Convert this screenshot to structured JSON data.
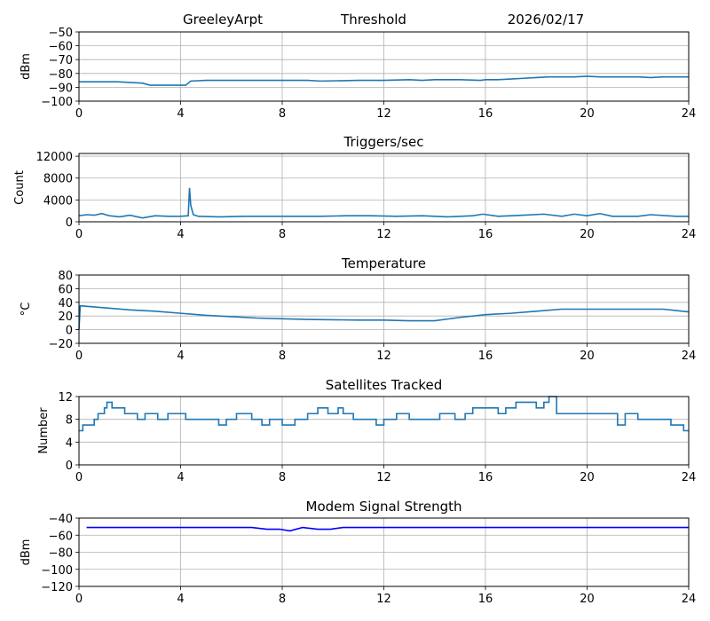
{
  "header": {
    "station": "GreeleyArpt",
    "mode": "Threshold",
    "date": "2026/02/17"
  },
  "chart_data": [
    {
      "type": "line",
      "title": "",
      "ylabel": "dBm",
      "xlim": [
        0,
        24
      ],
      "ylim": [
        -100,
        -50
      ],
      "xticks": [
        "0",
        "4",
        "8",
        "12",
        "16",
        "20",
        "24"
      ],
      "yticks": [
        "-50",
        "-60",
        "-70",
        "-80",
        "-90",
        "-100"
      ],
      "grid": true,
      "color": "#1f77b4",
      "x": [
        0,
        0.3,
        0.6,
        1.0,
        1.5,
        2.0,
        2.5,
        2.8,
        3.5,
        4.2,
        4.4,
        5.0,
        6.0,
        8.0,
        9.0,
        9.5,
        11.0,
        12.0,
        13.0,
        13.5,
        14.0,
        15.0,
        15.8,
        16.0,
        16.5,
        17.0,
        17.5,
        18.0,
        18.5,
        19.5,
        20.0,
        20.5,
        21.0,
        22.0,
        22.5,
        23.0,
        24.0
      ],
      "y": [
        -86,
        -86,
        -86,
        -86,
        -86,
        -86.5,
        -87,
        -88.5,
        -88.5,
        -88.5,
        -85.5,
        -85,
        -85,
        -85,
        -85,
        -85.5,
        -85,
        -85,
        -84.5,
        -85,
        -84.5,
        -84.5,
        -85,
        -84.5,
        -84.5,
        -84,
        -83.5,
        -83,
        -82.5,
        -82.5,
        -82,
        -82.5,
        -82.5,
        -82.5,
        -83,
        -82.5,
        -82.5
      ]
    },
    {
      "type": "line",
      "title": "Triggers/sec",
      "ylabel": "Count",
      "xlim": [
        0,
        24
      ],
      "ylim": [
        0,
        12500
      ],
      "xticks": [
        "0",
        "4",
        "8",
        "12",
        "16",
        "20",
        "24"
      ],
      "yticks": [
        "0",
        "4000",
        "8000",
        "12000"
      ],
      "grid": true,
      "color": "#1f77b4",
      "x": [
        0,
        0.3,
        0.6,
        0.9,
        1.2,
        1.6,
        2.0,
        2.5,
        3.0,
        3.5,
        4.0,
        4.3,
        4.35,
        4.4,
        4.5,
        4.7,
        5.5,
        6.5,
        7.5,
        8.5,
        9.5,
        10.5,
        11.5,
        12.5,
        13.5,
        14.5,
        15.5,
        15.9,
        16.5,
        17.5,
        18.3,
        19.0,
        19.5,
        20.0,
        20.5,
        21.0,
        22.0,
        22.5,
        23.5,
        24.0
      ],
      "y": [
        1100,
        1300,
        1200,
        1500,
        1100,
        900,
        1200,
        700,
        1100,
        1000,
        1000,
        1100,
        6200,
        3000,
        1300,
        1000,
        900,
        1000,
        1000,
        1000,
        1000,
        1100,
        1100,
        1000,
        1100,
        900,
        1100,
        1400,
        1000,
        1200,
        1400,
        1000,
        1400,
        1100,
        1500,
        1000,
        1000,
        1300,
        1000,
        1000
      ]
    },
    {
      "type": "line",
      "title": "Temperature",
      "ylabel": "°C",
      "xlim": [
        0,
        24
      ],
      "ylim": [
        -20,
        80
      ],
      "xticks": [
        "0",
        "4",
        "8",
        "12",
        "16",
        "20",
        "24"
      ],
      "yticks": [
        "80",
        "60",
        "40",
        "20",
        "0",
        "-20"
      ],
      "grid": true,
      "color": "#1f77b4",
      "x": [
        0,
        0.05,
        1,
        2,
        3,
        4,
        5,
        6,
        7,
        8,
        9,
        10,
        11,
        12,
        13,
        14,
        15,
        16,
        17,
        18,
        19,
        20,
        21,
        22,
        23,
        24
      ],
      "y": [
        0,
        35,
        32,
        29,
        27,
        24,
        21,
        19,
        17,
        16,
        15,
        14.5,
        14,
        14,
        13,
        13,
        18,
        22,
        24,
        27,
        30,
        30,
        30,
        30,
        30,
        26
      ]
    },
    {
      "type": "line",
      "title": "Satellites Tracked",
      "ylabel": "Number",
      "xlim": [
        0,
        24
      ],
      "ylim": [
        0,
        12
      ],
      "xticks": [
        "0",
        "4",
        "8",
        "12",
        "16",
        "20",
        "24"
      ],
      "yticks": [
        "12",
        "8",
        "4",
        "0"
      ],
      "grid": true,
      "color": "#1f77b4",
      "x": [
        0,
        0.15,
        0.5,
        0.6,
        0.75,
        1.0,
        1.1,
        1.3,
        1.8,
        2.3,
        2.6,
        3.1,
        3.5,
        3.8,
        4.2,
        4.4,
        5.5,
        5.8,
        6.2,
        6.8,
        7.2,
        7.5,
        8.0,
        8.5,
        9.0,
        9.4,
        9.8,
        10.2,
        10.4,
        10.8,
        11.5,
        11.7,
        12.0,
        12.5,
        13.0,
        13.5,
        14.2,
        14.8,
        15.2,
        15.5,
        16.0,
        16.5,
        16.8,
        17.2,
        18.0,
        18.3,
        18.5,
        18.8,
        19.5,
        20.0,
        21.0,
        21.2,
        21.5,
        22.0,
        23.0,
        23.3,
        23.8,
        24.0
      ],
      "y": [
        6,
        7,
        7,
        8,
        9,
        10,
        11,
        10,
        9,
        8,
        9,
        8,
        9,
        9,
        8,
        8,
        7,
        8,
        9,
        8,
        7,
        8,
        7,
        8,
        9,
        10,
        9,
        10,
        9,
        8,
        8,
        7,
        8,
        9,
        8,
        8,
        9,
        8,
        9,
        10,
        10,
        9,
        10,
        11,
        10,
        11,
        12,
        9,
        9,
        9,
        9,
        7,
        9,
        8,
        8,
        7,
        6,
        6
      ]
    },
    {
      "type": "line",
      "title": "Modem Signal Strength",
      "ylabel": "dBm",
      "xlim": [
        0,
        24
      ],
      "ylim": [
        -120,
        -40
      ],
      "xticks": [
        "0",
        "4",
        "8",
        "12",
        "16",
        "20",
        "24"
      ],
      "yticks": [
        "-40",
        "-60",
        "-80",
        "-100",
        "-120"
      ],
      "grid": true,
      "color": "#0000ff",
      "x": [
        0.3,
        6.8,
        7.4,
        7.9,
        8.3,
        8.8,
        9.4,
        9.9,
        10.4,
        12,
        16,
        20,
        24
      ],
      "y": [
        -51,
        -51,
        -53,
        -53,
        -55,
        -51,
        -53,
        -53,
        -51,
        -51,
        -51,
        -51,
        -51
      ]
    }
  ]
}
